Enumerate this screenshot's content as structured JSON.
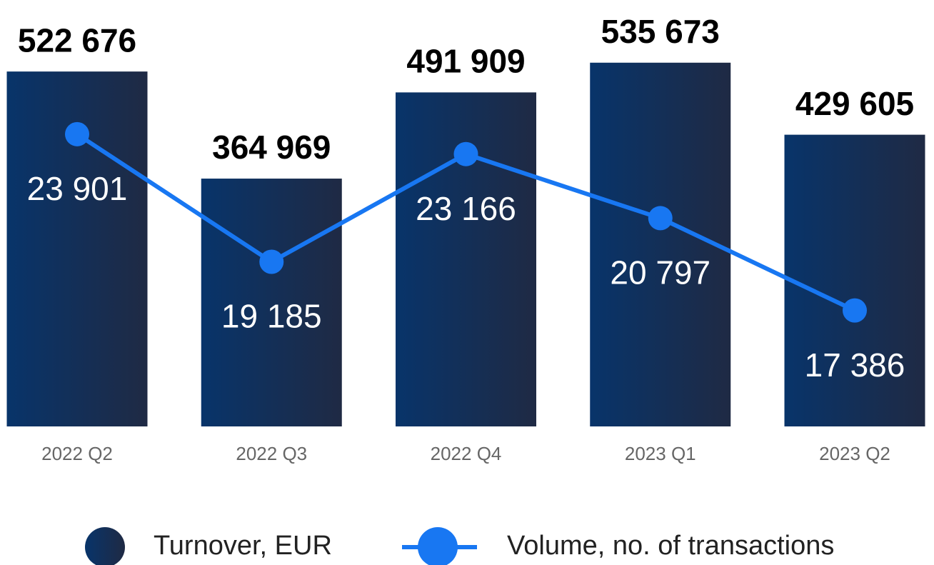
{
  "chart_data": {
    "type": "bar",
    "categories": [
      "2022 Q2",
      "2022 Q3",
      "2022 Q4",
      "2023 Q1",
      "2023 Q2"
    ],
    "series": [
      {
        "name": "Turnover, EUR",
        "type": "bar",
        "color": [
          "#08346a",
          "#1f2a44"
        ],
        "values": [
          522676,
          364969,
          491909,
          535673,
          429605
        ],
        "value_labels": [
          "522 676",
          "364 969",
          "491 909",
          "535 673",
          "429 605"
        ]
      },
      {
        "name": "Volume, no. of transactions",
        "type": "line",
        "axis": "y2",
        "color": "#1877f2",
        "values": [
          23901,
          19185,
          23166,
          20797,
          17386
        ],
        "value_labels": [
          "23 901",
          "19 185",
          "23 166",
          "20 797",
          "17 386"
        ]
      }
    ],
    "ylim": [
      0,
      628000
    ],
    "y2lim": [
      13100,
      28860
    ],
    "legend": "bottom"
  }
}
